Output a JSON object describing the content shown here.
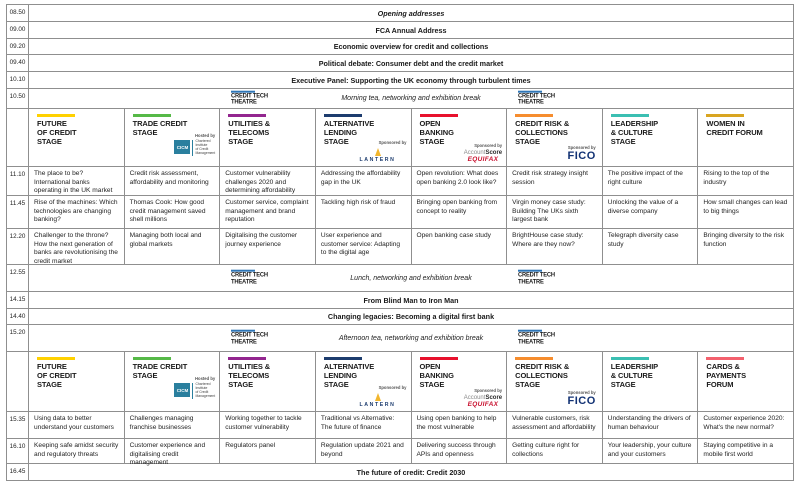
{
  "colors": {
    "border": "#8f8f8f",
    "ctt_bar_blue": "#2e75b6",
    "cicm_teal": "#2a7f9e",
    "lantern_navy": "#1d3c6e",
    "lantern_flame": "#f2b62e",
    "equifax_red": "#c8102e",
    "fico_navy": "#123274"
  },
  "plenary": [
    {
      "time": "08.50",
      "title": "Opening addresses"
    },
    {
      "time": "09.00",
      "title": "FCA Annual Address"
    },
    {
      "time": "09.20",
      "title": "Economic overview for credit and collections"
    },
    {
      "time": "09.40",
      "title": "Political debate: Consumer debt and the credit market"
    },
    {
      "time": "10.10",
      "title": "Executive Panel: Supporting the UK economy through turbulent times"
    }
  ],
  "breaks": {
    "morning": {
      "time": "10.50",
      "label": "Morning tea, networking and exhibition break"
    },
    "lunch": {
      "time": "12.55",
      "label": "Lunch, networking and exhibition break"
    },
    "afternoon": {
      "time": "15.20",
      "label": "Afternoon tea, networking and exhibition break"
    }
  },
  "midday_plenary": [
    {
      "time": "14.15",
      "title": "From Blind Man to Iron Man"
    },
    {
      "time": "14.40",
      "title": "Changing legacies: Becoming a digital first bank"
    }
  ],
  "closing": {
    "time": "16.45",
    "title": "The future of credit: Credit 2030"
  },
  "logos": {
    "ctt": {
      "line1": "CREDIT TECH",
      "line2": "THEATRE"
    },
    "cicm": {
      "hosted_by": "Hosted by",
      "abbr": "CICM",
      "name": "Chartered\nInstitute\nof Credit\nManagement"
    },
    "lantern": {
      "sponsored_by": "Sponsored by",
      "name": "LANTERN"
    },
    "accountscore": {
      "sponsored_by": "Sponsored by",
      "part1": "Account",
      "part2": "Score",
      "equifax": "EQUIFAX"
    },
    "fico": {
      "sponsored_by": "Sponsored by",
      "name": "FICO"
    }
  },
  "stages": [
    {
      "name": "FUTURE\nOF CREDIT\nSTAGE",
      "bar": "background:#ffd100"
    },
    {
      "name": "TRADE CREDIT\nSTAGE",
      "bar": "background:#56b947"
    },
    {
      "name": "UTILITIES &\nTELECOMS\nSTAGE",
      "bar": "background:#93268f"
    },
    {
      "name": "ALTERNATIVE\nLENDING\nSTAGE",
      "bar": "background:#1d3c6e"
    },
    {
      "name": "OPEN\nBANKING\nSTAGE",
      "bar": "background:#e8112d"
    },
    {
      "name": "CREDIT RISK &\nCOLLECTIONS\nSTAGE",
      "bar": "background:#f68d2e"
    },
    {
      "name": "LEADERSHIP\n& CULTURE\nSTAGE",
      "bar": "background:#3bbfb2"
    },
    {
      "name": "WOMEN IN\nCREDIT FORUM",
      "bar": "background:#d9a521"
    },
    {
      "name": "CARDS &\nPAYMENTS\nFORUM",
      "bar": "background:#f4616e"
    }
  ],
  "morning_sessions": [
    {
      "time": "11.10",
      "cells": [
        "The place to be? International banks operating in the UK market",
        "Credit risk assessment, affordability and monitoring",
        "Customer vulnerability challenges 2020 and determining affordability",
        "Addressing the affordability gap in the UK",
        "Open revolution: What does open banking 2.0 look like?",
        "Credit risk strategy insight session",
        "The positive impact of the right culture",
        "Rising to the top of the industry"
      ]
    },
    {
      "time": "11.45",
      "cells": [
        "Rise of the machines: Which technologies are changing banking?",
        "Thomas Cook: How good credit management saved shell millions",
        "Customer service, complaint management and brand reputation",
        "Tackling high risk of fraud",
        "Bringing open banking from concept to reality",
        "Virgin money case study: Building The UKs sixth largest bank",
        "Unlocking the value of a diverse company",
        "How small changes can lead to big things"
      ]
    },
    {
      "time": "12.20",
      "cells": [
        "Challenger to the throne? How the next generation of banks are revolutionising the credit market",
        "Managing both local and global markets",
        "Digitalising the customer journey experience",
        "User experience and customer service: Adapting to the digital age",
        "Open banking case study",
        "BrightHouse case study: Where are they now?",
        "Telegraph diversity case study",
        "Bringing diversity to the risk function"
      ]
    }
  ],
  "afternoon_sessions": [
    {
      "time": "15.35",
      "cells": [
        "Using data to better understand your customers",
        "Challenges managing franchise businesses",
        "Working together to tackle customer vulnerability",
        "Traditional vs Alternative: The future of finance",
        "Using open banking to help the most vulnerable",
        "Vulnerable customers, risk assessment and affordability",
        "Understanding the drivers of human behaviour",
        "Customer experience 2020: What's the new normal?"
      ]
    },
    {
      "time": "16.10",
      "cells": [
        "Keeping safe amidst security and regulatory threats",
        "Customer experience and digitalising credit management",
        "Regulators panel",
        "Regulation update 2021 and beyond",
        "Delivering success through APIs and openness",
        "Getting culture right for collections",
        "Your leadership, your culture and your customers",
        "Staying competitive in a mobile first world"
      ]
    }
  ]
}
